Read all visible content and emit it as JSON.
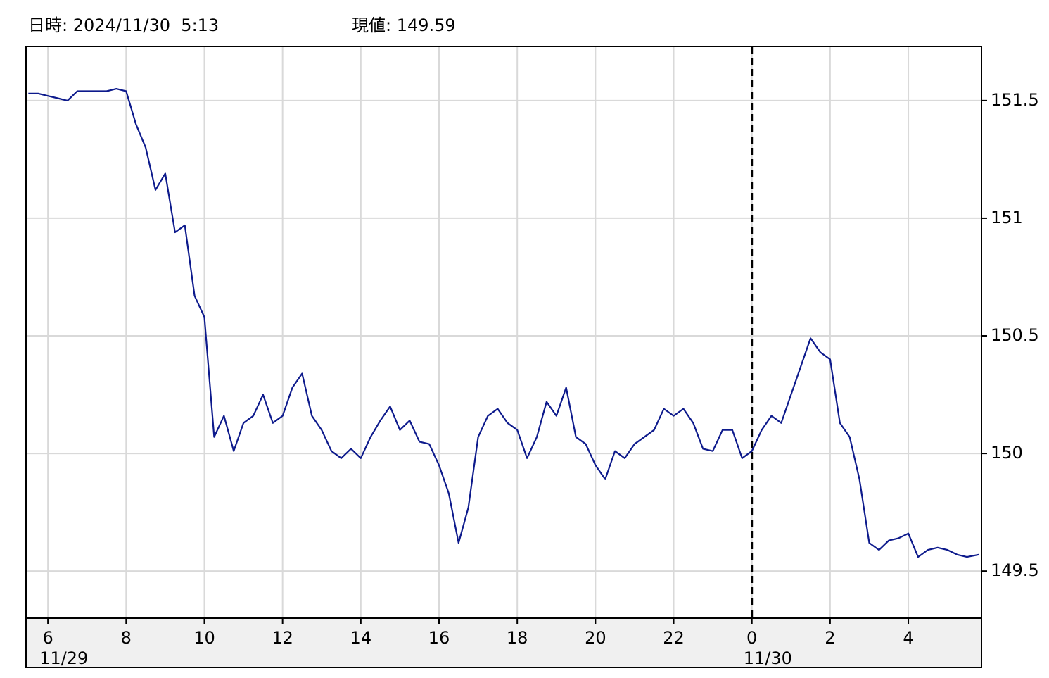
{
  "chart_data": {
    "type": "line",
    "header_time": "日時: 2024/11/30  5:13",
    "header_price": "現値: 149.59",
    "x": [
      5.5,
      5.75,
      6,
      6.25,
      6.5,
      6.75,
      7,
      7.25,
      7.5,
      7.75,
      8,
      8.25,
      8.5,
      8.75,
      9,
      9.25,
      9.5,
      9.75,
      10,
      10.25,
      10.5,
      10.75,
      11,
      11.25,
      11.5,
      11.75,
      12,
      12.25,
      12.5,
      12.75,
      13,
      13.25,
      13.5,
      13.75,
      14,
      14.25,
      14.5,
      14.75,
      15,
      15.25,
      15.5,
      15.75,
      16,
      16.25,
      16.5,
      16.75,
      17,
      17.25,
      17.5,
      17.75,
      18,
      18.25,
      18.5,
      18.75,
      19,
      19.25,
      19.5,
      19.75,
      20,
      20.25,
      20.5,
      20.75,
      21,
      21.25,
      21.5,
      21.75,
      22,
      22.25,
      22.5,
      22.75,
      23,
      23.25,
      23.5,
      23.75,
      24,
      24.25,
      24.5,
      24.75,
      25,
      25.25,
      25.5,
      25.75,
      26,
      26.25,
      26.5,
      26.75,
      27,
      27.25,
      27.5,
      27.75,
      28,
      28.25,
      28.5,
      28.75,
      29,
      29.25,
      29.5,
      29.8
    ],
    "series": [
      {
        "color": "#0d1a8c",
        "values": [
          151.53,
          151.53,
          151.52,
          151.51,
          151.5,
          151.54,
          151.54,
          151.54,
          151.54,
          151.55,
          151.54,
          151.4,
          151.3,
          151.12,
          151.19,
          150.94,
          150.97,
          150.67,
          150.58,
          150.07,
          150.16,
          150.01,
          150.13,
          150.16,
          150.25,
          150.13,
          150.16,
          150.28,
          150.34,
          150.16,
          150.1,
          150.01,
          149.98,
          150.02,
          149.98,
          150.07,
          150.14,
          150.2,
          150.1,
          150.14,
          150.05,
          150.04,
          149.95,
          149.83,
          149.62,
          149.77,
          150.07,
          150.16,
          150.19,
          150.13,
          150.1,
          149.98,
          150.07,
          150.22,
          150.16,
          150.28,
          150.07,
          150.04,
          149.95,
          149.89,
          150.01,
          149.98,
          150.04,
          150.07,
          150.1,
          150.19,
          150.16,
          150.19,
          150.13,
          150.02,
          150.01,
          150.1,
          150.1,
          149.98,
          150.01,
          150.1,
          150.16,
          150.13,
          150.25,
          150.37,
          150.49,
          150.43,
          150.4,
          150.13,
          150.07,
          149.89,
          149.62,
          149.59,
          149.63,
          149.64,
          149.66,
          149.56,
          149.59,
          149.6,
          149.59,
          149.57,
          149.56,
          149.57
        ]
      }
    ],
    "xlim": [
      5.44,
      29.87
    ],
    "xticks": [
      6,
      8,
      10,
      12,
      14,
      16,
      18,
      20,
      22,
      {
        "value": 24,
        "label": "0"
      },
      {
        "value": 26,
        "label": "2"
      },
      {
        "value": 28,
        "label": "4"
      }
    ],
    "date_labels": [
      {
        "value": 6,
        "label": "11/29"
      },
      {
        "value": 24,
        "label": "11/30"
      }
    ],
    "marker_x": 24,
    "ylim": [
      149.3,
      151.73
    ],
    "yticks": [
      149.5,
      150,
      150.5,
      151,
      151.5
    ],
    "grid": true
  }
}
